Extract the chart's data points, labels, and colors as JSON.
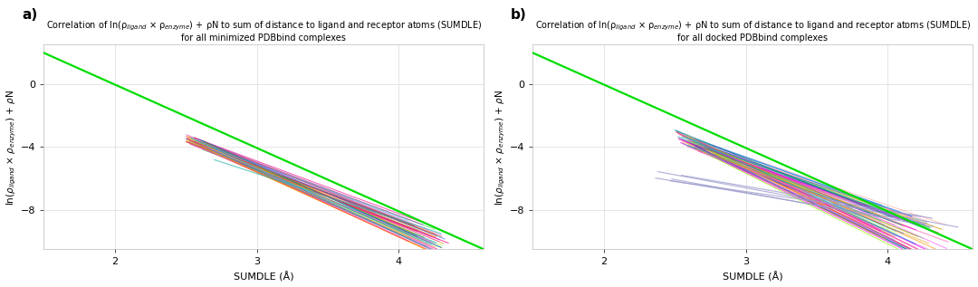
{
  "fig_width": 10.8,
  "fig_height": 3.17,
  "dpi": 100,
  "panel_a": {
    "label": "a)",
    "title_line1": "Correlation of ln(ρ$_{ligand}$ × ρ$_{enzyme}$) + ρN to sum of distance to ligand and receptor atoms (SUMDLE)",
    "title_line2": "for all minimized PDBbind complexes",
    "xlabel": "SUMDLE (Å)",
    "ylabel": "ln(ρ$_{ligand}$ × ρ$_{enzyme}$) + ρN",
    "xlim": [
      1.5,
      4.6
    ],
    "ylim": [
      -10.5,
      2.5
    ],
    "xticks": [
      2,
      3,
      4
    ],
    "yticks": [
      0,
      -4,
      -8
    ],
    "green_line_x": [
      1.2,
      4.6
    ],
    "green_line_y": [
      3.2,
      -10.5
    ],
    "bg_color": "#ffffff"
  },
  "panel_b": {
    "label": "b)",
    "title_line1": "Correlation of ln(ρ$_{ligand}$ × ρ$_{enzyme}$) + ρN to sum of distance to ligand and receptor atoms (SUMDLE)",
    "title_line2": "for all docked PDBbind complexes",
    "xlabel": "SUMDLE (Å)",
    "ylabel": "ln(ρ$_{ligand}$ × ρ$_{enzyme}$) + ρN",
    "xlim": [
      1.5,
      4.6
    ],
    "ylim": [
      -10.5,
      2.5
    ],
    "xticks": [
      2,
      3,
      4
    ],
    "yticks": [
      0,
      -4,
      -8
    ],
    "green_line_x": [
      1.2,
      4.6
    ],
    "green_line_y": [
      3.2,
      -10.5
    ],
    "bg_color": "#ffffff"
  },
  "title_fontsize": 7.0,
  "label_fontsize": 8,
  "tick_fontsize": 8,
  "panel_label_fontsize": 11,
  "grid_color": "#e0e0e0",
  "colors_main": [
    "#ff69b4",
    "#ff1493",
    "#ff00ff",
    "#da70d6",
    "#1e90ff",
    "#4169e1",
    "#00bfff",
    "#20b2aa",
    "#008080",
    "#00ced1",
    "#ffa500",
    "#ff8c00",
    "#daa520",
    "#32cd32",
    "#228b22",
    "#adff2f",
    "#ff6347",
    "#dc143c",
    "#9370db",
    "#8a2be2"
  ],
  "color_purple_outlier": "#9999cc"
}
